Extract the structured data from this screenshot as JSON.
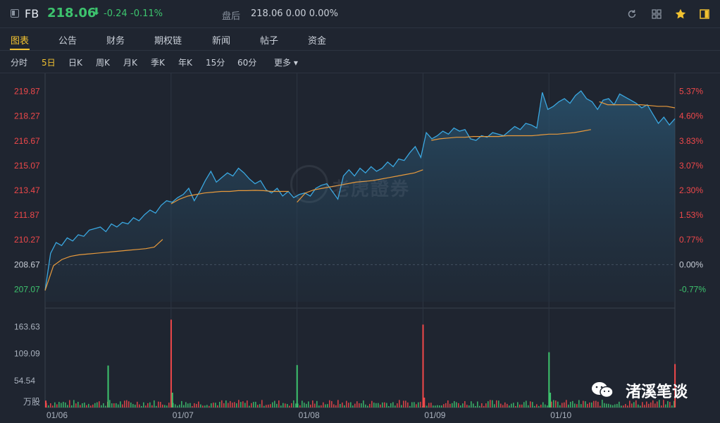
{
  "header": {
    "ticker": "FB",
    "price": "218.06",
    "arrow": "⬇",
    "change": "-0.24",
    "change_pct": "-0.11%",
    "after_hours_label": "盘后",
    "after_hours_value": "218.06 0.00 0.00%",
    "icons": [
      "refresh-icon",
      "grid-icon",
      "star-icon",
      "layout-icon"
    ],
    "accent": "#f2c230",
    "down_color": "#3dc46e",
    "up_color": "#f0484a"
  },
  "tabs": [
    "图表",
    "公告",
    "财务",
    "期权链",
    "新闻",
    "帖子",
    "资金"
  ],
  "periods": [
    "分时",
    "5日",
    "日K",
    "周K",
    "月K",
    "季K",
    "年K",
    "15分",
    "60分",
    "更多 ▾"
  ],
  "watermark": "老虎證券",
  "brand": "渚溪笔谈",
  "chart_data": {
    "type": "line",
    "title": "",
    "xlabel": "",
    "ylabel": "",
    "ylim": [
      206.27,
      220.67
    ],
    "prev_close": 208.67,
    "y_ticks": [
      "219.87",
      "218.27",
      "216.67",
      "215.07",
      "213.47",
      "211.87",
      "210.27",
      "208.67",
      "207.07"
    ],
    "pct_ticks": [
      "5.37%",
      "4.60%",
      "3.83%",
      "3.07%",
      "2.30%",
      "1.53%",
      "0.77%",
      "0.00%",
      "-0.77%"
    ],
    "volume_ticks": [
      "163.63",
      "109.09",
      "54.54",
      "万股"
    ],
    "volume_ylim": [
      0,
      190
    ],
    "x_ticks": [
      "01/06",
      "01/07",
      "01/08",
      "01/09",
      "01/10"
    ],
    "series": [
      {
        "values": [
          207.0,
          209.4,
          210.1,
          209.9,
          210.4,
          210.2,
          210.6,
          210.5,
          210.9,
          211.0,
          211.1,
          210.8,
          211.3,
          211.1,
          211.4,
          211.3,
          211.7,
          211.5,
          211.9,
          212.2,
          212.0,
          212.5,
          212.8,
          212.7,
          213.0,
          213.2,
          213.6,
          212.8,
          213.4,
          214.1,
          214.7,
          214.0,
          214.3,
          214.6,
          214.4,
          214.9,
          214.6,
          214.2,
          213.9,
          214.1,
          213.5,
          213.3,
          213.6,
          213.1,
          213.4,
          213.0,
          213.2,
          213.3,
          213.1,
          213.6,
          213.8,
          213.9,
          213.4,
          212.9,
          214.4,
          214.8,
          214.4,
          214.9,
          214.6,
          215.0,
          214.7,
          214.9,
          215.3,
          215.0,
          215.5,
          215.4,
          215.9,
          216.3,
          215.6,
          217.2,
          216.8,
          217.0,
          217.3,
          217.1,
          217.5,
          217.3,
          217.4,
          216.8,
          216.7,
          217.0,
          216.9,
          217.2,
          217.1,
          217.0,
          217.3,
          217.6,
          217.4,
          217.8,
          217.7,
          217.5,
          219.8,
          218.7,
          218.9,
          219.2,
          219.4,
          219.1,
          219.6,
          219.9,
          219.4,
          219.2,
          218.7,
          219.3,
          219.4,
          219.0,
          219.7,
          219.5,
          219.3,
          219.1,
          218.8,
          219.0,
          218.4,
          217.8,
          218.2,
          217.7,
          218.1
        ],
        "day_breaks": [
          0,
          23,
          45,
          68,
          90,
          114
        ]
      },
      {
        "name_hidden": "avg",
        "values": [
          207.0,
          208.6,
          209.0,
          209.2,
          209.3,
          209.35,
          209.4,
          209.45,
          209.5,
          209.55,
          209.6,
          209.65,
          209.7,
          209.8,
          210.3,
          212.6,
          212.9,
          213.1,
          213.2,
          213.3,
          213.35,
          213.4,
          213.4,
          213.45,
          213.45,
          213.47,
          213.45,
          213.4,
          213.4,
          213.4,
          212.7,
          213.3,
          213.5,
          213.6,
          213.7,
          213.8,
          213.9,
          214.0,
          214.05,
          214.1,
          214.2,
          214.3,
          214.4,
          214.5,
          214.6,
          214.8,
          216.7,
          216.8,
          216.85,
          216.9,
          216.9,
          216.95,
          216.95,
          216.95,
          216.95,
          217.0,
          217.0,
          217.0,
          217.0,
          217.05,
          217.1,
          217.1,
          217.15,
          217.2,
          217.3,
          217.4,
          219.2,
          219.0,
          219.0,
          219.0,
          219.0,
          219.0,
          218.95,
          218.9,
          218.9,
          218.8
        ],
        "avg_breaks": [
          0,
          15,
          30,
          46,
          66,
          76
        ]
      }
    ],
    "volume": [
      {
        "x": 0.0,
        "v": 14,
        "c": "up"
      },
      {
        "x": 0.099,
        "v": 85,
        "c": "down"
      },
      {
        "x": 0.199,
        "v": 178,
        "c": "up"
      },
      {
        "x": 0.201,
        "v": 30,
        "c": "down"
      },
      {
        "x": 0.399,
        "v": 86,
        "c": "down"
      },
      {
        "x": 0.599,
        "v": 168,
        "c": "up"
      },
      {
        "x": 0.601,
        "v": 20,
        "c": "up"
      },
      {
        "x": 0.799,
        "v": 112,
        "c": "down"
      },
      {
        "x": 0.801,
        "v": 30,
        "c": "down"
      },
      {
        "x": 0.999,
        "v": 88,
        "c": "up"
      }
    ]
  }
}
